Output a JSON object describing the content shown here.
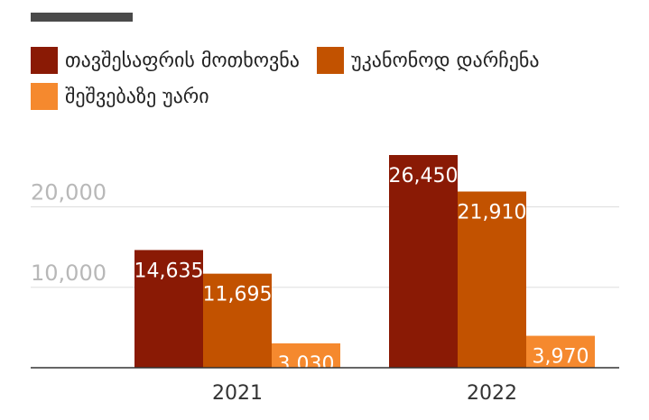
{
  "chart_data": {
    "type": "bar",
    "categories": [
      "2021",
      "2022"
    ],
    "series": [
      {
        "name": "თავშესაფრის მოთხოვნა",
        "color": "#8a1a05",
        "values": [
          14635,
          26450
        ],
        "labels": [
          "14,635",
          "26,450"
        ]
      },
      {
        "name": "უკანონოდ დარჩენა",
        "color": "#c25200",
        "values": [
          11695,
          21910
        ],
        "labels": [
          "11,695",
          "21,910"
        ]
      },
      {
        "name": "შეშვებაზე უარი",
        "color": "#f5892e",
        "values": [
          3030,
          3970
        ],
        "labels": [
          "3,030",
          "3,970"
        ]
      }
    ],
    "yticks": [
      10000,
      20000
    ],
    "ytick_labels": [
      "10,000",
      "20,000"
    ],
    "ylim": [
      0,
      26450
    ],
    "grid": true,
    "legend": "top-left",
    "title": "",
    "xlabel": "",
    "ylabel": ""
  }
}
